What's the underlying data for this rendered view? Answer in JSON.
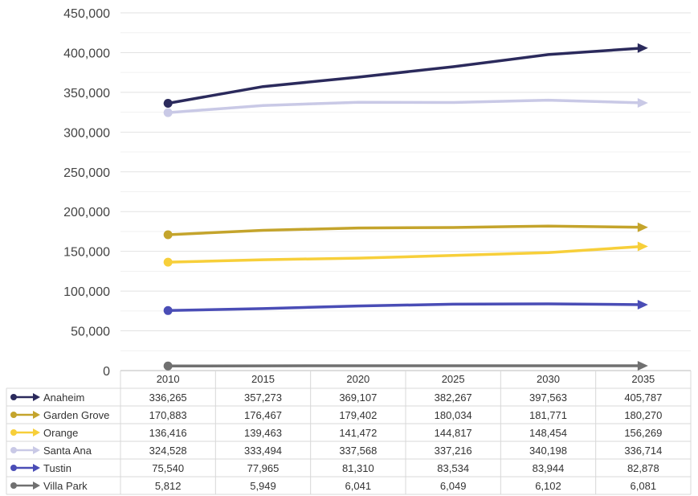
{
  "chart_data": {
    "type": "line",
    "categories": [
      "2010",
      "2015",
      "2020",
      "2025",
      "2030",
      "2035"
    ],
    "ylim": [
      0,
      450000
    ],
    "yticks": [
      "0",
      "50,000",
      "100,000",
      "150,000",
      "200,000",
      "250,000",
      "300,000",
      "350,000",
      "400,000",
      "450,000"
    ],
    "grid": true,
    "legend": "data-table-left",
    "series": [
      {
        "name": "Anaheim",
        "color": "#2b2a5c",
        "values": [
          336265,
          357273,
          369107,
          382267,
          397563,
          405787
        ],
        "labels": [
          "336,265",
          "357,273",
          "369,107",
          "382,267",
          "397,563",
          "405,787"
        ]
      },
      {
        "name": "Garden Grove",
        "color": "#c4a42c",
        "values": [
          170883,
          176467,
          179402,
          180034,
          181771,
          180270
        ],
        "labels": [
          "170,883",
          "176,467",
          "179,402",
          "180,034",
          "181,771",
          "180,270"
        ]
      },
      {
        "name": "Orange",
        "color": "#f7cf3a",
        "values": [
          136416,
          139463,
          141472,
          144817,
          148454,
          156269
        ],
        "labels": [
          "136,416",
          "139,463",
          "141,472",
          "144,817",
          "148,454",
          "156,269"
        ]
      },
      {
        "name": "Santa Ana",
        "color": "#c9c9e6",
        "values": [
          324528,
          333494,
          337568,
          337216,
          340198,
          336714
        ],
        "labels": [
          "324,528",
          "333,494",
          "337,568",
          "337,216",
          "340,198",
          "336,714"
        ]
      },
      {
        "name": "Tustin",
        "color": "#4a4db6",
        "values": [
          75540,
          77965,
          81310,
          83534,
          83944,
          82878
        ],
        "labels": [
          "75,540",
          "77,965",
          "81,310",
          "83,534",
          "83,944",
          "82,878"
        ]
      },
      {
        "name": "Villa Park",
        "color": "#707070",
        "values": [
          5812,
          5949,
          6041,
          6049,
          6102,
          6081
        ],
        "labels": [
          "5,812",
          "5,949",
          "6,041",
          "6,049",
          "6,102",
          "6,081"
        ]
      }
    ]
  }
}
